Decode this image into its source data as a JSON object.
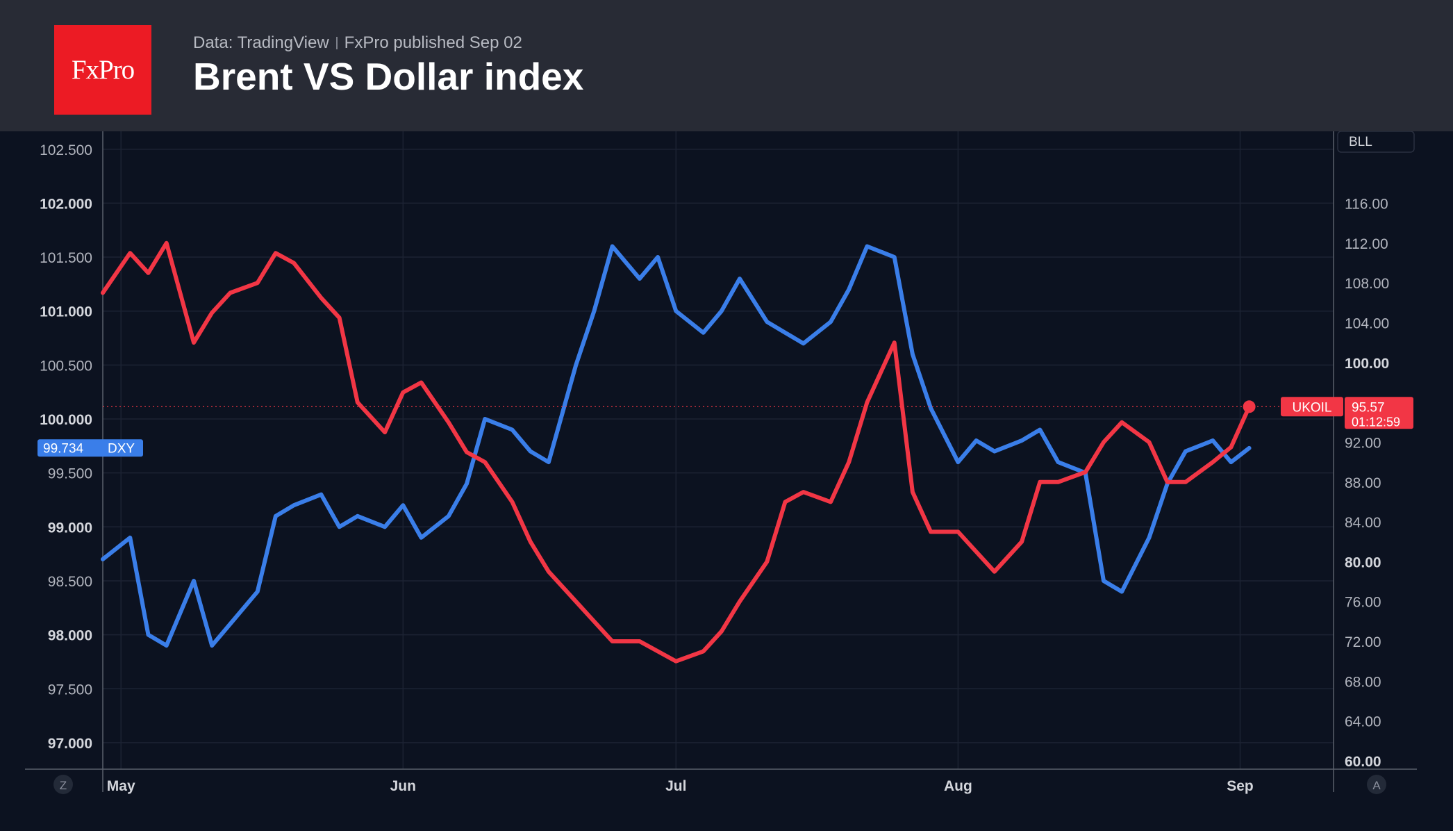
{
  "header": {
    "logo_text": "FxPro",
    "source": "Data: TradingView",
    "published": "FxPro published Sep 02",
    "title": "Brent VS Dollar index"
  },
  "colors": {
    "dxy": "#3a7ee9",
    "brent": "#f23645",
    "background": "#0c1220",
    "header_bg": "#282b35",
    "logo_bg": "#ec1b24"
  },
  "chart_data": {
    "type": "line",
    "title": "Brent VS Dollar index",
    "x_ticks": [
      "May",
      "Jun",
      "Jul",
      "Aug",
      "Sep"
    ],
    "y_left": {
      "range": [
        96.8,
        102.7
      ],
      "ticks": [
        "97.000",
        "97.500",
        "98.000",
        "98.500",
        "99.000",
        "99.500",
        "100.000",
        "100.500",
        "101.000",
        "101.500",
        "102.000",
        "102.500"
      ]
    },
    "y_right": {
      "range": [
        58.6,
        121.0
      ],
      "ticks": [
        "60.00",
        "64.00",
        "68.00",
        "72.00",
        "76.00",
        "80.00",
        "84.00",
        "88.00",
        "92.00",
        "96.00",
        "100.00",
        "104.00",
        "108.00",
        "112.00",
        "116.00"
      ],
      "scale_label": "BLL"
    },
    "buttons": {
      "left": "Z",
      "right": "A"
    },
    "series": [
      {
        "name": "DXY",
        "axis": "left",
        "last_value": "99.734",
        "x": [
          "2022-04-29",
          "2022-05-02",
          "2022-05-04",
          "2022-05-06",
          "2022-05-09",
          "2022-05-11",
          "2022-05-13",
          "2022-05-16",
          "2022-05-18",
          "2022-05-20",
          "2022-05-23",
          "2022-05-25",
          "2022-05-27",
          "2022-05-30",
          "2022-06-01",
          "2022-06-03",
          "2022-06-06",
          "2022-06-08",
          "2022-06-10",
          "2022-06-13",
          "2022-06-15",
          "2022-06-17",
          "2022-06-20",
          "2022-06-22",
          "2022-06-24",
          "2022-06-27",
          "2022-06-29",
          "2022-07-01",
          "2022-07-04",
          "2022-07-06",
          "2022-07-08",
          "2022-07-11",
          "2022-07-13",
          "2022-07-15",
          "2022-07-18",
          "2022-07-20",
          "2022-07-22",
          "2022-07-25",
          "2022-07-27",
          "2022-07-29",
          "2022-08-01",
          "2022-08-03",
          "2022-08-05",
          "2022-08-08",
          "2022-08-10",
          "2022-08-12",
          "2022-08-15",
          "2022-08-17",
          "2022-08-19",
          "2022-08-22",
          "2022-08-24",
          "2022-08-26",
          "2022-08-29",
          "2022-08-31",
          "2022-09-02"
        ],
        "values": [
          98.7,
          98.9,
          98.0,
          97.9,
          98.5,
          97.9,
          98.1,
          98.4,
          99.1,
          99.2,
          99.3,
          99.0,
          99.1,
          99.0,
          99.2,
          98.9,
          99.1,
          99.4,
          100.0,
          99.9,
          99.7,
          99.6,
          100.5,
          101.0,
          101.6,
          101.3,
          101.5,
          101.0,
          100.8,
          101.0,
          101.3,
          100.9,
          100.8,
          100.7,
          100.9,
          101.2,
          101.6,
          101.5,
          100.6,
          100.1,
          99.6,
          99.8,
          99.7,
          99.8,
          99.9,
          99.6,
          99.5,
          98.5,
          98.4,
          98.9,
          99.4,
          99.7,
          99.8,
          99.6,
          99.73
        ]
      },
      {
        "name": "UKOIL",
        "axis": "right",
        "last_value": "95.57",
        "countdown": "01:12:59",
        "x": [
          "2022-04-29",
          "2022-05-02",
          "2022-05-04",
          "2022-05-06",
          "2022-05-09",
          "2022-05-11",
          "2022-05-13",
          "2022-05-16",
          "2022-05-18",
          "2022-05-20",
          "2022-05-23",
          "2022-05-25",
          "2022-05-27",
          "2022-05-30",
          "2022-06-01",
          "2022-06-03",
          "2022-06-06",
          "2022-06-08",
          "2022-06-10",
          "2022-06-13",
          "2022-06-15",
          "2022-06-17",
          "2022-06-20",
          "2022-06-22",
          "2022-06-24",
          "2022-06-27",
          "2022-06-29",
          "2022-07-01",
          "2022-07-04",
          "2022-07-06",
          "2022-07-08",
          "2022-07-11",
          "2022-07-13",
          "2022-07-15",
          "2022-07-18",
          "2022-07-20",
          "2022-07-22",
          "2022-07-25",
          "2022-07-27",
          "2022-07-29",
          "2022-08-01",
          "2022-08-03",
          "2022-08-05",
          "2022-08-08",
          "2022-08-10",
          "2022-08-12",
          "2022-08-15",
          "2022-08-17",
          "2022-08-19",
          "2022-08-22",
          "2022-08-24",
          "2022-08-26",
          "2022-08-29",
          "2022-08-31",
          "2022-09-02"
        ],
        "values": [
          107.0,
          111.0,
          109.0,
          112.0,
          102.0,
          105.0,
          107.0,
          108.0,
          111.0,
          110.0,
          106.5,
          104.5,
          96.0,
          93.0,
          97.0,
          98.0,
          94.0,
          91.0,
          90.0,
          86.0,
          82.0,
          79.0,
          76.0,
          74.0,
          72.0,
          72.0,
          71.0,
          70.0,
          71.0,
          73.0,
          76.0,
          80.0,
          86.0,
          87.0,
          86.0,
          90.0,
          96.0,
          102.0,
          87.0,
          83.0,
          83.0,
          81.0,
          79.0,
          82.0,
          88.0,
          88.0,
          89.0,
          92.0,
          94.0,
          92.0,
          88.0,
          88.0,
          90.0,
          91.5,
          95.57
        ]
      }
    ]
  }
}
